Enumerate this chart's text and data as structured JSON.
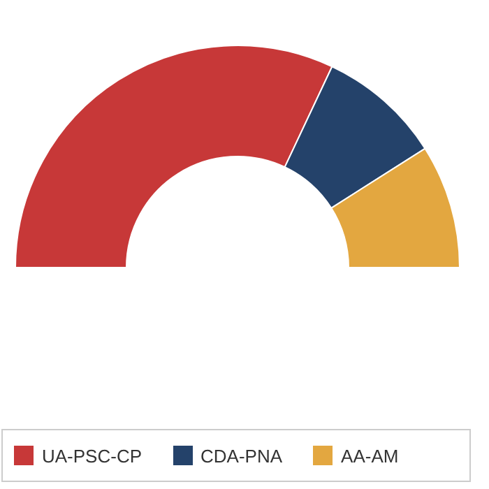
{
  "chart_data": {
    "type": "donut",
    "categories": [
      "UA-PSC-CP",
      "CDA-PNA",
      "AA-AM"
    ],
    "values": [
      64,
      18,
      18
    ],
    "colors": [
      "#c73838",
      "#24426a",
      "#e3a740"
    ],
    "legend": "bottom"
  }
}
